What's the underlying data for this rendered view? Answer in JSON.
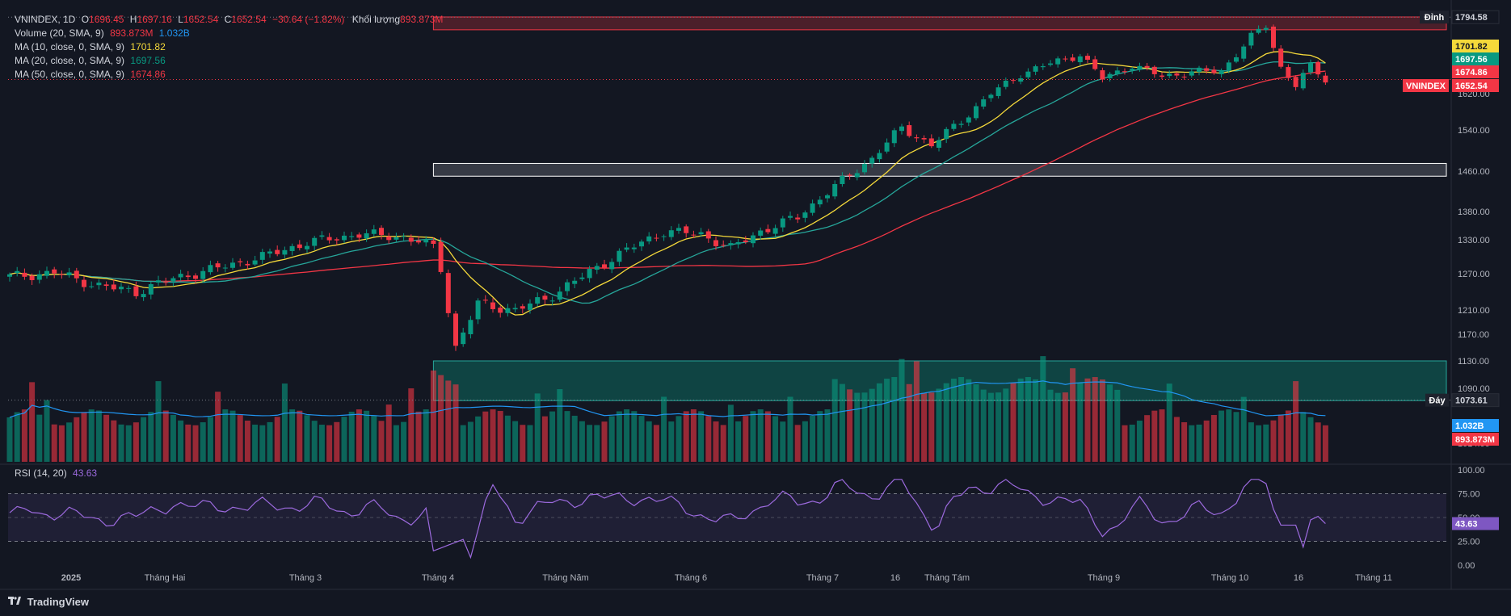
{
  "legend": {
    "line1": {
      "symbol": "VNINDEX, 1D",
      "o_label": "O",
      "o": "1696.45",
      "h_label": "H",
      "h": "1697.16",
      "l_label": "L",
      "l": "1652.54",
      "c_label": "C",
      "c": "1652.54",
      "chg": "−30.64 (−1.82%)",
      "vol_label": "Khối lượng",
      "vol": "893.873M"
    },
    "line2": {
      "label": "Volume (20, SMA, 9)",
      "v1": "893.873M",
      "v2": "1.032B"
    },
    "line3": {
      "label": "MA (10, close, 0, SMA, 9)",
      "v": "1701.82"
    },
    "line4": {
      "label": "MA (20, close, 0, SMA, 9)",
      "v": "1697.56"
    },
    "line5": {
      "label": "MA (50, close, 0, SMA, 9)",
      "v": "1674.86"
    }
  },
  "rsi_legend": {
    "label": "RSI (14, 20)",
    "v": "43.63"
  },
  "footer": {
    "brand": "TradingView"
  },
  "colors": {
    "bg": "#131722",
    "up": "#089981",
    "down": "#f23645",
    "ma10": "#f5d93a",
    "ma20": "#26a69a",
    "ma50": "#f23645",
    "vol_ma": "#2196f3",
    "rsi": "#9c6ade"
  },
  "chart_data": {
    "type": "candlestick",
    "x_tick_labels": [
      "2025",
      "Tháng Hai",
      "Tháng 3",
      "Tháng 4",
      "Tháng Năm",
      "Tháng 6",
      "Tháng 7",
      "16",
      "Tháng Tám",
      "Tháng 9",
      "Tháng 10",
      "16",
      "Tháng 11"
    ],
    "price_ticks": [
      "1620.00",
      "1540.00",
      "1460.00",
      "1380.00",
      "1330.00",
      "1270.00",
      "1210.00",
      "1170.00",
      "1130.00",
      "1090.00",
      "1014.00"
    ],
    "rsi_ticks": [
      "100.00",
      "75.00",
      "50.00",
      "25.00",
      "0.00"
    ],
    "price_tags": [
      {
        "label": "Đỉnh",
        "value": "1794.58"
      },
      {
        "label": "",
        "value": "1701.82"
      },
      {
        "label": "",
        "value": "1697.56"
      },
      {
        "label": "",
        "value": "1674.86"
      },
      {
        "label": "VNINDEX",
        "value": "1652.54"
      },
      {
        "label": "Đáy",
        "value": "1073.61"
      },
      {
        "label": "",
        "value": "1.032B"
      },
      {
        "label": "",
        "value": "893.873M"
      },
      {
        "label": "",
        "value": "43.63"
      }
    ],
    "price_anchors": [
      {
        "x": 0,
        "y": 1265
      },
      {
        "x": 6,
        "y": 1272
      },
      {
        "x": 12,
        "y": 1250
      },
      {
        "x": 17,
        "y": 1240
      },
      {
        "x": 22,
        "y": 1262
      },
      {
        "x": 28,
        "y": 1280
      },
      {
        "x": 34,
        "y": 1300
      },
      {
        "x": 40,
        "y": 1325
      },
      {
        "x": 47,
        "y": 1340
      },
      {
        "x": 53,
        "y": 1335
      },
      {
        "x": 57,
        "y": 1318
      },
      {
        "x": 58,
        "y": 1280
      },
      {
        "x": 59,
        "y": 1210
      },
      {
        "x": 60,
        "y": 1150
      },
      {
        "x": 63,
        "y": 1220
      },
      {
        "x": 68,
        "y": 1210
      },
      {
        "x": 72,
        "y": 1228
      },
      {
        "x": 77,
        "y": 1265
      },
      {
        "x": 82,
        "y": 1305
      },
      {
        "x": 88,
        "y": 1345
      },
      {
        "x": 93,
        "y": 1340
      },
      {
        "x": 97,
        "y": 1315
      },
      {
        "x": 101,
        "y": 1345
      },
      {
        "x": 106,
        "y": 1370
      },
      {
        "x": 111,
        "y": 1430
      },
      {
        "x": 116,
        "y": 1485
      },
      {
        "x": 120,
        "y": 1545
      },
      {
        "x": 124,
        "y": 1510
      },
      {
        "x": 128,
        "y": 1560
      },
      {
        "x": 132,
        "y": 1620
      },
      {
        "x": 136,
        "y": 1665
      },
      {
        "x": 140,
        "y": 1690
      },
      {
        "x": 144,
        "y": 1710
      },
      {
        "x": 147,
        "y": 1655
      },
      {
        "x": 151,
        "y": 1685
      },
      {
        "x": 155,
        "y": 1660
      },
      {
        "x": 159,
        "y": 1670
      },
      {
        "x": 163,
        "y": 1672
      },
      {
        "x": 167,
        "y": 1750
      },
      {
        "x": 169,
        "y": 1775
      },
      {
        "x": 171,
        "y": 1680
      },
      {
        "x": 173,
        "y": 1640
      },
      {
        "x": 175,
        "y": 1683
      },
      {
        "x": 177,
        "y": 1652
      }
    ],
    "zones": [
      {
        "from": 1766,
        "to": 1795
      },
      {
        "from": 1450,
        "to": 1475
      },
      {
        "from": 1073,
        "to": 1130
      }
    ]
  }
}
